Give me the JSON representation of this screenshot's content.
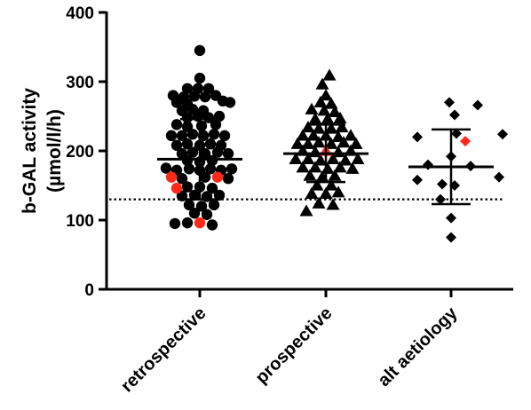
{
  "chart_data": {
    "type": "scatter",
    "ylabel_line1": "b-GAL activity",
    "ylabel_line2": "(µmol/l/h)",
    "ylim": [
      0,
      400
    ],
    "yticks": [
      0,
      100,
      200,
      300,
      400
    ],
    "categories": [
      "retrospective",
      "prospective",
      "alt aetiology"
    ],
    "reference_line": 130,
    "groups": [
      {
        "category": "retrospective",
        "marker": "circle",
        "mean": 188,
        "sd_upper": 246,
        "sd_lower": 130,
        "points": [
          {
            "dx": 0,
            "y": 345
          },
          {
            "dx": 0,
            "y": 305
          },
          {
            "dx": -14,
            "y": 290
          },
          {
            "dx": -2,
            "y": 290
          },
          {
            "dx": 10,
            "y": 290
          },
          {
            "dx": -30,
            "y": 280
          },
          {
            "dx": -18,
            "y": 278
          },
          {
            "dx": -6,
            "y": 279
          },
          {
            "dx": 6,
            "y": 278
          },
          {
            "dx": 18,
            "y": 280
          },
          {
            "dx": -26,
            "y": 270
          },
          {
            "dx": -14,
            "y": 268
          },
          {
            "dx": 26,
            "y": 272
          },
          {
            "dx": 34,
            "y": 270
          },
          {
            "dx": -20,
            "y": 258
          },
          {
            "dx": -8,
            "y": 260
          },
          {
            "dx": 4,
            "y": 258
          },
          {
            "dx": -14,
            "y": 248
          },
          {
            "dx": -2,
            "y": 250
          },
          {
            "dx": 10,
            "y": 248
          },
          {
            "dx": 22,
            "y": 250
          },
          {
            "dx": -26,
            "y": 238
          },
          {
            "dx": -14,
            "y": 235
          },
          {
            "dx": 2,
            "y": 236
          },
          {
            "dx": 18,
            "y": 238
          },
          {
            "dx": -32,
            "y": 222
          },
          {
            "dx": -20,
            "y": 222
          },
          {
            "dx": -8,
            "y": 224
          },
          {
            "dx": 4,
            "y": 222
          },
          {
            "dx": 16,
            "y": 224
          },
          {
            "dx": 28,
            "y": 222
          },
          {
            "dx": -26,
            "y": 208
          },
          {
            "dx": -14,
            "y": 210
          },
          {
            "dx": 0,
            "y": 208
          },
          {
            "dx": 12,
            "y": 210
          },
          {
            "dx": 24,
            "y": 208
          },
          {
            "dx": -20,
            "y": 196
          },
          {
            "dx": -8,
            "y": 198
          },
          {
            "dx": 6,
            "y": 196
          },
          {
            "dx": 20,
            "y": 198
          },
          {
            "dx": 32,
            "y": 196
          },
          {
            "dx": -14,
            "y": 186
          },
          {
            "dx": 0,
            "y": 184
          },
          {
            "dx": 14,
            "y": 186
          },
          {
            "dx": -38,
            "y": 175
          },
          {
            "dx": -26,
            "y": 172
          },
          {
            "dx": -12,
            "y": 174
          },
          {
            "dx": 0,
            "y": 172
          },
          {
            "dx": 12,
            "y": 174
          },
          {
            "dx": 24,
            "y": 172
          },
          {
            "dx": 36,
            "y": 174
          },
          {
            "dx": -32,
            "y": 162,
            "red": true
          },
          {
            "dx": 20,
            "y": 162,
            "red": true
          },
          {
            "dx": -20,
            "y": 160
          },
          {
            "dx": 6,
            "y": 162
          },
          {
            "dx": 32,
            "y": 160
          },
          {
            "dx": -14,
            "y": 148
          },
          {
            "dx": -26,
            "y": 146,
            "red": true
          },
          {
            "dx": 0,
            "y": 148
          },
          {
            "dx": 14,
            "y": 146
          },
          {
            "dx": -20,
            "y": 135
          },
          {
            "dx": -6,
            "y": 136
          },
          {
            "dx": 8,
            "y": 134
          },
          {
            "dx": 22,
            "y": 136
          },
          {
            "dx": -12,
            "y": 122
          },
          {
            "dx": 2,
            "y": 120
          },
          {
            "dx": 16,
            "y": 122
          },
          {
            "dx": -6,
            "y": 110
          },
          {
            "dx": 8,
            "y": 108
          },
          {
            "dx": -28,
            "y": 95
          },
          {
            "dx": -14,
            "y": 96
          },
          {
            "dx": 0,
            "y": 96,
            "red": true
          },
          {
            "dx": 14,
            "y": 93
          }
        ]
      },
      {
        "category": "prospective",
        "marker": "triangle",
        "mean": 196,
        "sd_upper": 238,
        "sd_lower": 155,
        "points": [
          {
            "dx": 4,
            "y": 309
          },
          {
            "dx": -4,
            "y": 296
          },
          {
            "dx": 0,
            "y": 280
          },
          {
            "dx": -6,
            "y": 270
          },
          {
            "dx": 6,
            "y": 268
          },
          {
            "dx": -16,
            "y": 260
          },
          {
            "dx": -2,
            "y": 258
          },
          {
            "dx": 10,
            "y": 256
          },
          {
            "dx": -12,
            "y": 246
          },
          {
            "dx": 2,
            "y": 246
          },
          {
            "dx": 16,
            "y": 247
          },
          {
            "dx": -20,
            "y": 234
          },
          {
            "dx": -8,
            "y": 232
          },
          {
            "dx": 6,
            "y": 232
          },
          {
            "dx": 18,
            "y": 234
          },
          {
            "dx": -26,
            "y": 222
          },
          {
            "dx": -14,
            "y": 222
          },
          {
            "dx": 0,
            "y": 222
          },
          {
            "dx": 14,
            "y": 220
          },
          {
            "dx": 28,
            "y": 222
          },
          {
            "dx": -32,
            "y": 210
          },
          {
            "dx": -20,
            "y": 210
          },
          {
            "dx": -8,
            "y": 212
          },
          {
            "dx": 6,
            "y": 210
          },
          {
            "dx": 20,
            "y": 212
          },
          {
            "dx": 34,
            "y": 210
          },
          {
            "dx": -26,
            "y": 200
          },
          {
            "dx": -12,
            "y": 198
          },
          {
            "dx": 0,
            "y": 200,
            "red": true
          },
          {
            "dx": 14,
            "y": 198
          },
          {
            "dx": 28,
            "y": 200
          },
          {
            "dx": -34,
            "y": 188
          },
          {
            "dx": -20,
            "y": 188
          },
          {
            "dx": -6,
            "y": 186
          },
          {
            "dx": 8,
            "y": 188
          },
          {
            "dx": 22,
            "y": 186
          },
          {
            "dx": 36,
            "y": 188
          },
          {
            "dx": -26,
            "y": 176
          },
          {
            "dx": -12,
            "y": 176
          },
          {
            "dx": 2,
            "y": 174
          },
          {
            "dx": 16,
            "y": 176
          },
          {
            "dx": 30,
            "y": 174
          },
          {
            "dx": -18,
            "y": 164
          },
          {
            "dx": -4,
            "y": 162
          },
          {
            "dx": 10,
            "y": 164
          },
          {
            "dx": -10,
            "y": 150
          },
          {
            "dx": 6,
            "y": 150
          },
          {
            "dx": -16,
            "y": 138
          },
          {
            "dx": 0,
            "y": 138
          },
          {
            "dx": 14,
            "y": 140
          },
          {
            "dx": -8,
            "y": 124
          },
          {
            "dx": 8,
            "y": 122
          },
          {
            "dx": -22,
            "y": 113
          }
        ]
      },
      {
        "category": "alt aetiology",
        "marker": "diamond",
        "mean": 177,
        "sd_upper": 231,
        "sd_lower": 123,
        "points": [
          {
            "dx": -2,
            "y": 270
          },
          {
            "dx": 30,
            "y": 266
          },
          {
            "dx": 4,
            "y": 252
          },
          {
            "dx": 6,
            "y": 225
          },
          {
            "dx": 58,
            "y": 224
          },
          {
            "dx": -38,
            "y": 220
          },
          {
            "dx": 16,
            "y": 214,
            "red": true
          },
          {
            "dx": 0,
            "y": 192
          },
          {
            "dx": -26,
            "y": 180
          },
          {
            "dx": 22,
            "y": 178
          },
          {
            "dx": -38,
            "y": 158
          },
          {
            "dx": 54,
            "y": 162
          },
          {
            "dx": -10,
            "y": 152
          },
          {
            "dx": 4,
            "y": 150
          },
          {
            "dx": -12,
            "y": 130
          },
          {
            "dx": 0,
            "y": 103
          },
          {
            "dx": 0,
            "y": 75
          }
        ]
      }
    ]
  }
}
